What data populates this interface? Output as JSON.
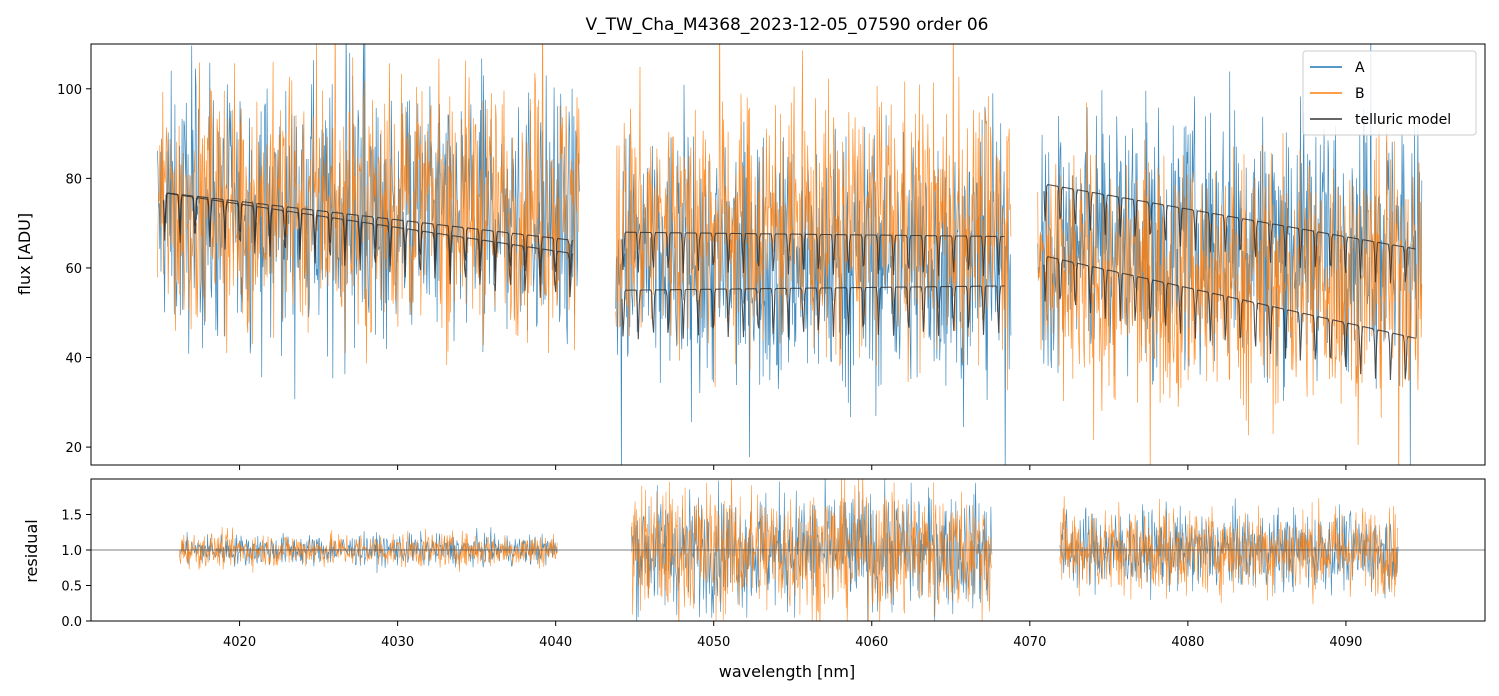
{
  "figure": {
    "title": "V_TW_Cha_M4368_2023-12-05_07590  order 06",
    "xlabel": "wavelength [nm]"
  },
  "colors": {
    "A": "#1f77b4",
    "B": "#ff7f0e",
    "telluric": "#333333",
    "residual_ref": "#555555"
  },
  "chart_data": [
    {
      "type": "line",
      "title": "V_TW_Cha_M4368_2023-12-05_07590  order 06",
      "xlabel": "wavelength [nm]",
      "ylabel": "flux [ADU]",
      "xlim": [
        4010.6,
        4098.8
      ],
      "ylim": [
        16,
        110
      ],
      "yticks": [
        20,
        40,
        60,
        80,
        100
      ],
      "xticks": [
        4020,
        4030,
        4040,
        4050,
        4060,
        4070,
        4080,
        4090
      ],
      "legend": {
        "location": "top-right",
        "entries": [
          "A",
          "B",
          "telluric model"
        ]
      },
      "segments": [
        {
          "x_range": [
            4014.8,
            4041.5
          ],
          "A_mean": 72,
          "B_mean": 74,
          "telluric_upper": [
            77,
            66
          ],
          "telluric_lower": [
            77,
            63
          ]
        },
        {
          "x_range": [
            4043.8,
            4068.8
          ],
          "A_mean": 62,
          "B_mean": 70,
          "telluric_upper": [
            68,
            67
          ],
          "telluric_lower": [
            55,
            56
          ]
        },
        {
          "x_range": [
            4070.5,
            4094.8
          ],
          "A_mean": 66,
          "B_mean": 58,
          "telluric_upper": [
            79,
            64
          ],
          "telluric_lower": [
            63,
            44
          ]
        }
      ],
      "series": [
        {
          "name": "A",
          "description": "observed spectrum A, noisy around the telluric model"
        },
        {
          "name": "B",
          "description": "observed spectrum B, noisy around the telluric model"
        },
        {
          "name": "telluric model",
          "description": "smooth model with periodic absorption dips"
        }
      ]
    },
    {
      "type": "line",
      "xlabel": "wavelength [nm]",
      "ylabel": "residual",
      "xlim": [
        4010.6,
        4098.8
      ],
      "ylim": [
        0.0,
        2.0
      ],
      "yticks": [
        0.0,
        0.5,
        1.0,
        1.5
      ],
      "yticklabels": [
        "0.0",
        "0.5",
        "1.0",
        "1.5"
      ],
      "xticks": [
        4020,
        4030,
        4040,
        4050,
        4060,
        4070,
        4080,
        4090
      ],
      "reference_line": 1.0,
      "segments": [
        {
          "x_range": [
            4016.2,
            4040.1
          ],
          "scatter": 0.12
        },
        {
          "x_range": [
            4044.8,
            4067.6
          ],
          "scatter": 0.45
        },
        {
          "x_range": [
            4071.9,
            4093.3
          ],
          "scatter": 0.3
        }
      ]
    }
  ]
}
